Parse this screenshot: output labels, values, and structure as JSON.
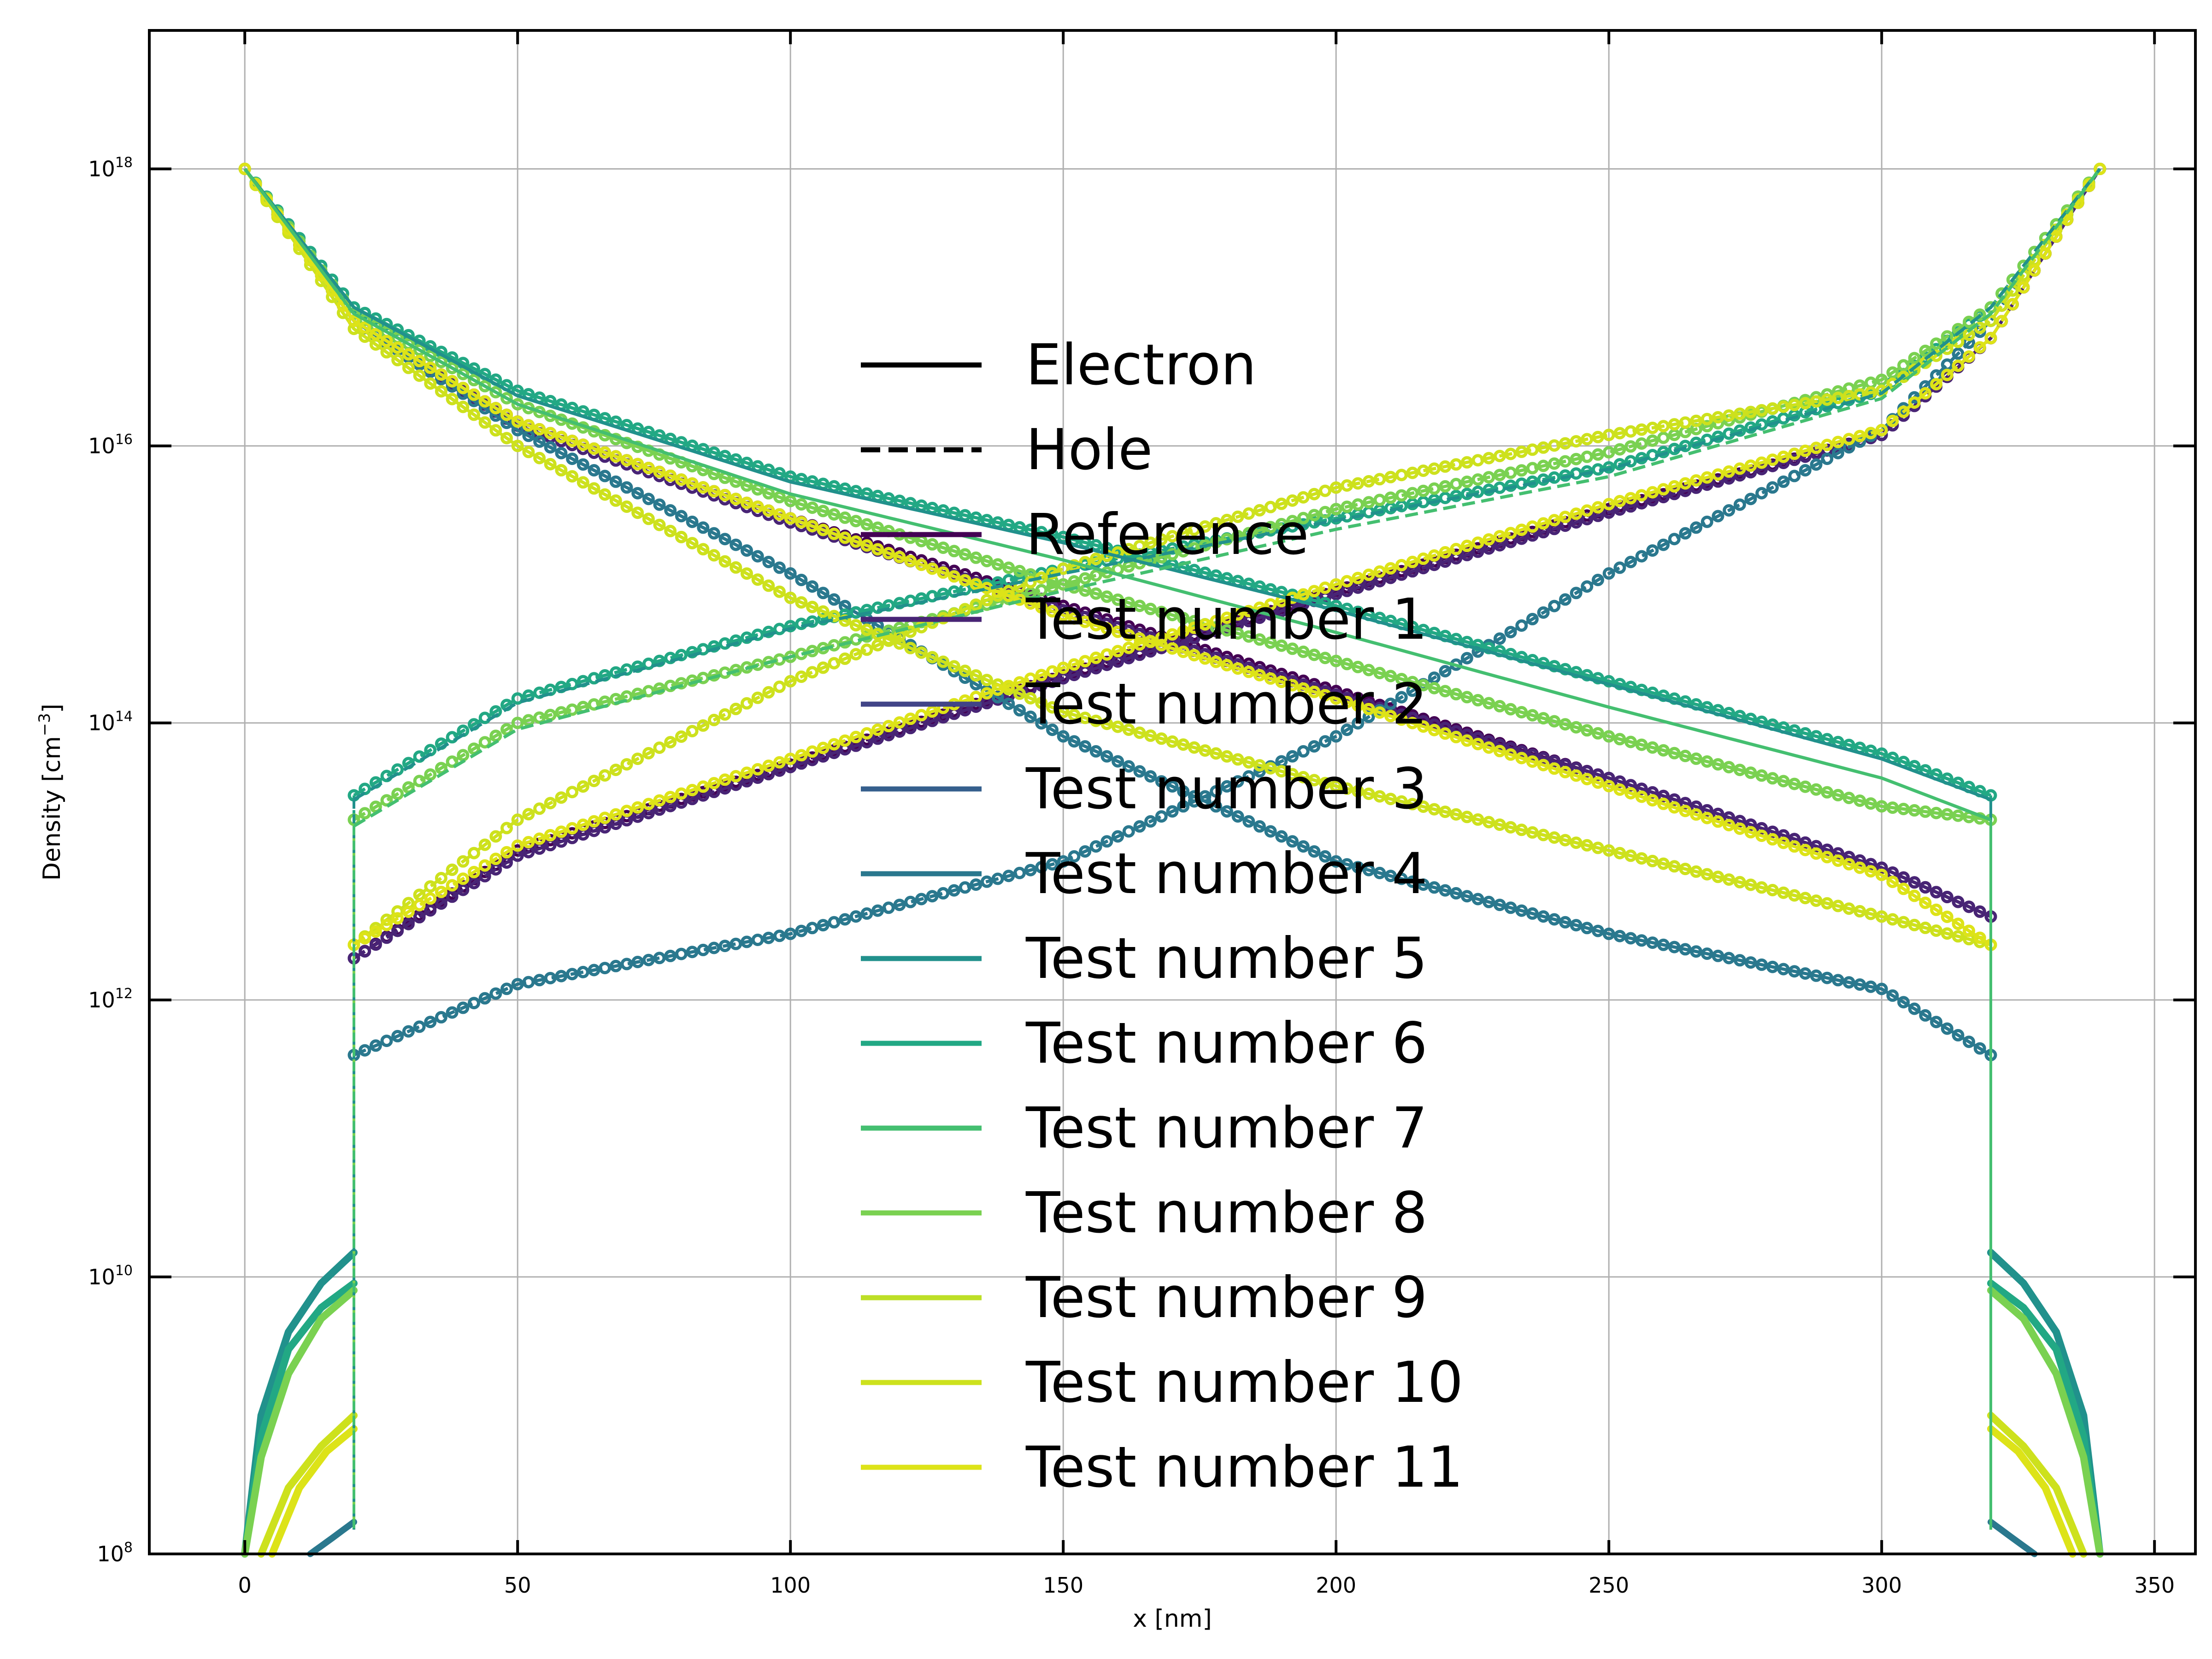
{
  "chart_data": {
    "type": "line",
    "xlabel": "x [nm]",
    "ylabel": "Density [cm",
    "ylabel_sup": "−3",
    "ylabel_tail": "]",
    "y_scale": "log",
    "xlim": [
      -17.5,
      357.5
    ],
    "ylim": [
      100000000.0,
      1e+19
    ],
    "x_ticks": [
      0,
      50,
      100,
      150,
      200,
      250,
      300,
      350
    ],
    "x_tick_labels": [
      "0",
      "50",
      "100",
      "150",
      "200",
      "250",
      "300",
      "350"
    ],
    "y_ticks": [
      100000000.0,
      10000000000.0,
      1000000000000.0,
      100000000000000.0,
      1e+16,
      1e+18
    ],
    "y_tick_labels": [
      {
        "base": "10",
        "exp": "8"
      },
      {
        "base": "10",
        "exp": "10"
      },
      {
        "base": "10",
        "exp": "12"
      },
      {
        "base": "10",
        "exp": "14"
      },
      {
        "base": "10",
        "exp": "16"
      },
      {
        "base": "10",
        "exp": "18"
      }
    ],
    "grid": true,
    "legend_position": "center",
    "legend": [
      {
        "label": "Electron",
        "color": "#000000",
        "style": "solid"
      },
      {
        "label": "Hole",
        "color": "#000000",
        "style": "dashed"
      },
      {
        "label": "Reference",
        "color": "#440154",
        "style": "solid"
      },
      {
        "label": "Test number 1",
        "color": "#482475",
        "style": "solid"
      },
      {
        "label": "Test number 2",
        "color": "#414487",
        "style": "solid"
      },
      {
        "label": "Test number 3",
        "color": "#355f8d",
        "style": "solid"
      },
      {
        "label": "Test number 4",
        "color": "#2a788e",
        "style": "solid"
      },
      {
        "label": "Test number 5",
        "color": "#21918c",
        "style": "solid"
      },
      {
        "label": "Test number 6",
        "color": "#22a884",
        "style": "solid"
      },
      {
        "label": "Test number 7",
        "color": "#44bf70",
        "style": "solid"
      },
      {
        "label": "Test number 8",
        "color": "#7ad151",
        "style": "solid"
      },
      {
        "label": "Test number 9",
        "color": "#bddf26",
        "style": "solid"
      },
      {
        "label": "Test number 10",
        "color": "#cde11d",
        "style": "solid"
      },
      {
        "label": "Test number 11",
        "color": "#dde318",
        "style": "solid"
      }
    ],
    "series": [
      {
        "legend_index": 2,
        "color": "#440154",
        "marker": true,
        "electron": {
          "x": [
            0,
            20,
            50,
            100,
            150,
            200,
            250,
            300,
            320
          ],
          "y": [
            1e+18,
            8e+16,
            1.5e+16,
            3000000000000000.0,
            700000000000000.0,
            170000000000000.0,
            40000000000000.0,
            9000000000000.0,
            4000000000000.0
          ]
        },
        "hole": {
          "x": [
            20,
            50,
            100,
            150,
            200,
            250,
            300,
            320,
            340
          ],
          "y": [
            2000000000000.0,
            12000000000000.0,
            50000000000000.0,
            220000000000000.0,
            900000000000000.0,
            3500000000000000.0,
            1.2e+16,
            6e+16,
            1e+18
          ]
        }
      },
      {
        "legend_index": 3,
        "color": "#482475",
        "marker": true,
        "electron": {
          "x": [
            0,
            20,
            50,
            100,
            150,
            200,
            250,
            300,
            320
          ],
          "y": [
            1e+18,
            8e+16,
            1.4e+16,
            2800000000000000.0,
            650000000000000.0,
            160000000000000.0,
            40000000000000.0,
            9000000000000.0,
            4000000000000.0
          ]
        },
        "hole": {
          "x": [
            20,
            50,
            100,
            150,
            200,
            250,
            300,
            320,
            340
          ],
          "y": [
            2000000000000.0,
            11000000000000.0,
            48000000000000.0,
            210000000000000.0,
            850000000000000.0,
            3300000000000000.0,
            1.2e+16,
            6e+16,
            1e+18
          ]
        }
      },
      {
        "legend_index": 5,
        "color": "#2a788e",
        "marker": true,
        "electron": {
          "x": [
            0,
            20,
            50,
            100,
            150,
            200,
            250,
            300,
            320
          ],
          "y": [
            1e+18,
            8e+16,
            1.3e+16,
            1200000000000000.0,
            80000000000000.0,
            10000000000000.0,
            3000000000000.0,
            1200000000000.0,
            400000000000.0
          ]
        },
        "hole": {
          "x": [
            20,
            50,
            100,
            150,
            200,
            250,
            300,
            320,
            340
          ],
          "y": [
            400000000000.0,
            1300000000000.0,
            3000000000000.0,
            10000000000000.0,
            80000000000000.0,
            1200000000000000.0,
            1.3e+16,
            8e+16,
            1e+18
          ]
        }
      },
      {
        "legend_index": 7,
        "color": "#22a884",
        "marker": true,
        "electron": {
          "x": [
            0,
            20,
            50,
            100,
            150,
            200,
            250,
            300,
            320
          ],
          "y": [
            1e+18,
            1e+17,
            2.5e+16,
            6000000000000000.0,
            2200000000000000.0,
            700000000000000.0,
            200000000000000.0,
            60000000000000.0,
            30000000000000.0
          ]
        },
        "hole": {
          "x": [
            20,
            50,
            100,
            150,
            200,
            250,
            300,
            320,
            340
          ],
          "y": [
            30000000000000.0,
            150000000000000.0,
            500000000000000.0,
            1300000000000000.0,
            3000000000000000.0,
            7000000000000000.0,
            2.5e+16,
            1e+17,
            1e+18
          ]
        }
      },
      {
        "legend_index": 9,
        "color": "#7ad151",
        "marker": true,
        "electron": {
          "x": [
            0,
            20,
            50,
            100,
            150,
            200,
            250,
            300,
            320
          ],
          "y": [
            1e+18,
            9e+16,
            2e+16,
            4000000000000000.0,
            1000000000000000.0,
            280000000000000.0,
            80000000000000.0,
            25000000000000.0,
            20000000000000.0
          ]
        },
        "hole": {
          "x": [
            20,
            50,
            100,
            150,
            200,
            250,
            300,
            320,
            340
          ],
          "y": [
            20000000000000.0,
            100000000000000.0,
            300000000000000.0,
            1000000000000000.0,
            3500000000000000.0,
            9000000000000000.0,
            3e+16,
            1e+17,
            1e+18
          ]
        }
      },
      {
        "legend_index": 10,
        "color": "#cde11d",
        "marker": true,
        "electron": {
          "x": [
            0,
            20,
            50,
            100,
            150,
            200,
            250,
            300,
            320
          ],
          "y": [
            1e+18,
            7e+16,
            1e+16,
            800000000000000.0,
            120000000000000.0,
            35000000000000.0,
            12000000000000.0,
            4000000000000.0,
            2500000000000.0
          ]
        },
        "hole": {
          "x": [
            20,
            50,
            100,
            150,
            200,
            250,
            300,
            320,
            340
          ],
          "y": [
            2500000000000.0,
            20000000000000.0,
            200000000000000.0,
            1300000000000000.0,
            5000000000000000.0,
            1.2e+16,
            2.5e+16,
            8e+16,
            1e+18
          ]
        }
      },
      {
        "legend_index": 11,
        "color": "#dde318",
        "marker": true,
        "electron": {
          "x": [
            0,
            20,
            50,
            100,
            150,
            200,
            250,
            300,
            320
          ],
          "y": [
            1e+18,
            8e+16,
            1.5e+16,
            3000000000000000.0,
            600000000000000.0,
            150000000000000.0,
            35000000000000.0,
            8000000000000.0,
            2500000000000.0
          ]
        },
        "hole": {
          "x": [
            20,
            50,
            100,
            150,
            200,
            250,
            300,
            320,
            340
          ],
          "y": [
            2500000000000.0,
            13000000000000.0,
            55000000000000.0,
            250000000000000.0,
            1000000000000000.0,
            3800000000000000.0,
            1.3e+16,
            6e+16,
            1e+18
          ]
        }
      },
      {
        "legend_index": 6,
        "color": "#21918c",
        "marker": false,
        "electron": {
          "x": [
            0,
            20,
            50,
            100,
            150,
            200,
            250,
            300,
            320
          ],
          "y": [
            1e+18,
            1e+17,
            2.3e+16,
            5500000000000000.0,
            2000000000000000.0,
            650000000000000.0,
            190000000000000.0,
            55000000000000.0,
            28000000000000.0
          ]
        },
        "hole": {
          "x": [
            20,
            50,
            100,
            150,
            200,
            250,
            300,
            320,
            340
          ],
          "y": [
            28000000000000.0,
            140000000000000.0,
            480000000000000.0,
            1200000000000000.0,
            2900000000000000.0,
            6800000000000000.0,
            2.4e+16,
            1e+17,
            1e+18
          ]
        }
      },
      {
        "legend_index": 8,
        "color": "#44bf70",
        "marker": false,
        "electron": {
          "x": [
            0,
            20,
            50,
            100,
            150,
            200,
            250,
            300,
            320
          ],
          "y": [
            1e+18,
            9e+16,
            2e+16,
            4500000000000000.0,
            1500000000000000.0,
            450000000000000.0,
            130000000000000.0,
            40000000000000.0,
            20000000000000.0
          ]
        },
        "hole": {
          "x": [
            20,
            50,
            100,
            150,
            200,
            250,
            300,
            320,
            340
          ],
          "y": [
            18000000000000.0,
            90000000000000.0,
            300000000000000.0,
            900000000000000.0,
            2500000000000000.0,
            6000000000000000.0,
            2.2e+16,
            9e+16,
            1e+18
          ]
        }
      }
    ],
    "edge_electron": [
      {
        "color": "#21918c",
        "x": [
          0,
          3,
          8,
          14,
          20
        ],
        "y": [
          100000000.0,
          1000000000.0,
          4000000000.0,
          9000000000.0,
          15000000000.0
        ]
      },
      {
        "color": "#22a884",
        "x": [
          0,
          3,
          8,
          14,
          20
        ],
        "y": [
          100000000.0,
          700000000.0,
          3000000000.0,
          6000000000.0,
          9000000000.0
        ]
      },
      {
        "color": "#7ad151",
        "x": [
          0,
          3,
          8,
          14,
          20
        ],
        "y": [
          100000000.0,
          500000000.0,
          2000000000.0,
          5000000000.0,
          8000000000.0
        ]
      },
      {
        "color": "#cde11d",
        "x": [
          3,
          8,
          14,
          20
        ],
        "y": [
          100000000.0,
          300000000.0,
          600000000.0,
          1000000000.0
        ]
      },
      {
        "color": "#dde318",
        "x": [
          5,
          10,
          15,
          20
        ],
        "y": [
          100000000.0,
          300000000.0,
          550000000.0,
          800000000.0
        ]
      }
    ],
    "edge_hole": [
      {
        "color": "#21918c",
        "x": [
          320,
          326,
          332,
          337,
          340
        ],
        "y": [
          15000000000.0,
          9000000000.0,
          4000000000.0,
          1000000000.0,
          100000000.0
        ]
      },
      {
        "color": "#22a884",
        "x": [
          320,
          326,
          332,
          337,
          340
        ],
        "y": [
          9000000000.0,
          6000000000.0,
          3000000000.0,
          700000000.0,
          100000000.0
        ]
      },
      {
        "color": "#7ad151",
        "x": [
          320,
          326,
          332,
          337,
          340
        ],
        "y": [
          8000000000.0,
          5000000000.0,
          2000000000.0,
          500000000.0,
          100000000.0
        ]
      },
      {
        "color": "#cde11d",
        "x": [
          320,
          326,
          332,
          337
        ],
        "y": [
          1000000000.0,
          600000000.0,
          300000000.0,
          100000000.0
        ]
      },
      {
        "color": "#dde318",
        "x": [
          320,
          325,
          330,
          335
        ],
        "y": [
          800000000.0,
          550000000.0,
          300000000.0,
          100000000.0
        ]
      }
    ],
    "edge_minor": [
      {
        "color": "#2a788e",
        "x": [
          12,
          16,
          20
        ],
        "y": [
          100000000.0,
          130000000.0,
          170000000.0
        ]
      },
      {
        "color": "#2a788e",
        "x": [
          320,
          324,
          328
        ],
        "y": [
          170000000.0,
          130000000.0,
          100000000.0
        ]
      }
    ]
  }
}
